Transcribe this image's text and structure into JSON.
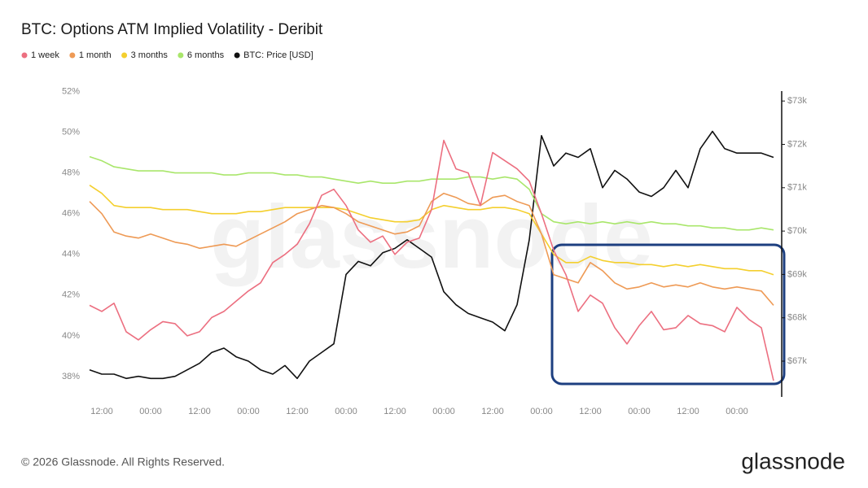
{
  "chart_data": {
    "type": "line",
    "title": "BTC: Options ATM Implied Volatility - Deribit",
    "watermark": "glassnode",
    "categories": [
      null,
      "12:00",
      null,
      null,
      null,
      "00:00",
      null,
      null,
      null,
      "12:00",
      null,
      null,
      null,
      "00:00",
      null,
      null,
      null,
      "12:00",
      null,
      null,
      null,
      "00:00",
      null,
      null,
      null,
      "12:00",
      null,
      null,
      null,
      "00:00",
      null,
      null,
      null,
      "12:00",
      null,
      null,
      null,
      "00:00",
      null,
      null,
      null,
      "12:00",
      null,
      null,
      null,
      "00:00",
      null,
      null,
      null,
      "12:00",
      null,
      null,
      null,
      "00:00",
      null,
      null,
      null
    ],
    "ylim": [
      37,
      52.3
    ],
    "yticks": [
      {
        "value": 38,
        "label": "38%"
      },
      {
        "value": 40,
        "label": "40%"
      },
      {
        "value": 42,
        "label": "42%"
      },
      {
        "value": 44,
        "label": "44%"
      },
      {
        "value": 46,
        "label": "46%"
      },
      {
        "value": 48,
        "label": "48%"
      },
      {
        "value": 50,
        "label": "50%"
      },
      {
        "value": 52,
        "label": "52%"
      }
    ],
    "y2lim": [
      66175,
      73360
    ],
    "y2ticks": [
      {
        "value": 67000,
        "label": "$67k"
      },
      {
        "value": 68000,
        "label": "$68k"
      },
      {
        "value": 69000,
        "label": "$69k"
      },
      {
        "value": 70000,
        "label": "$70k"
      },
      {
        "value": 71000,
        "label": "$71k"
      },
      {
        "value": 72000,
        "label": "$72k"
      },
      {
        "value": 73000,
        "label": "$73k"
      }
    ],
    "grid": false,
    "series": [
      {
        "name": "1 week",
        "color": "#ec6f80",
        "values": [
          41.5,
          41.2,
          41.6,
          40.2,
          39.8,
          40.3,
          40.7,
          40.6,
          40.0,
          40.2,
          40.9,
          41.2,
          41.7,
          42.2,
          42.6,
          43.6,
          44.0,
          44.5,
          45.5,
          46.9,
          47.2,
          46.4,
          45.2,
          44.6,
          44.9,
          44.0,
          44.6,
          44.8,
          46.2,
          49.6,
          48.2,
          48.0,
          46.4,
          49.0,
          48.6,
          48.2,
          47.6,
          46.0,
          44.2,
          43.0,
          41.2,
          42.0,
          41.6,
          40.4,
          39.6,
          40.5,
          41.2,
          40.3,
          40.4,
          41.0,
          40.6,
          40.5,
          40.2,
          41.4,
          40.8,
          40.4,
          37.8
        ]
      },
      {
        "name": "1 month",
        "color": "#ee9a55",
        "values": [
          46.6,
          46.0,
          45.1,
          44.9,
          44.8,
          45.0,
          44.8,
          44.6,
          44.5,
          44.3,
          44.4,
          44.5,
          44.4,
          44.7,
          45.0,
          45.3,
          45.6,
          46.0,
          46.2,
          46.4,
          46.3,
          46.0,
          45.6,
          45.4,
          45.2,
          45.0,
          45.1,
          45.4,
          46.6,
          47.0,
          46.8,
          46.5,
          46.4,
          46.8,
          46.9,
          46.6,
          46.4,
          45.0,
          43.0,
          42.8,
          42.6,
          43.6,
          43.2,
          42.6,
          42.3,
          42.4,
          42.6,
          42.4,
          42.5,
          42.4,
          42.6,
          42.4,
          42.3,
          42.4,
          42.3,
          42.2,
          41.5
        ]
      },
      {
        "name": "3 months",
        "color": "#f4cf2e",
        "values": [
          47.4,
          47.0,
          46.4,
          46.3,
          46.3,
          46.3,
          46.2,
          46.2,
          46.2,
          46.1,
          46.0,
          46.0,
          46.0,
          46.1,
          46.1,
          46.2,
          46.3,
          46.3,
          46.3,
          46.3,
          46.3,
          46.2,
          46.0,
          45.8,
          45.7,
          45.6,
          45.6,
          45.7,
          46.2,
          46.4,
          46.3,
          46.2,
          46.2,
          46.3,
          46.3,
          46.2,
          46.0,
          45.0,
          44.0,
          43.6,
          43.6,
          43.9,
          43.7,
          43.6,
          43.6,
          43.5,
          43.5,
          43.4,
          43.5,
          43.4,
          43.5,
          43.4,
          43.3,
          43.3,
          43.2,
          43.2,
          43.0
        ]
      },
      {
        "name": "6 months",
        "color": "#a9e66b",
        "values": [
          48.8,
          48.6,
          48.3,
          48.2,
          48.1,
          48.1,
          48.1,
          48.0,
          48.0,
          48.0,
          48.0,
          47.9,
          47.9,
          48.0,
          48.0,
          48.0,
          47.9,
          47.9,
          47.8,
          47.8,
          47.7,
          47.6,
          47.5,
          47.6,
          47.5,
          47.5,
          47.6,
          47.6,
          47.7,
          47.7,
          47.7,
          47.8,
          47.8,
          47.7,
          47.8,
          47.7,
          47.2,
          46.0,
          45.6,
          45.5,
          45.6,
          45.5,
          45.6,
          45.5,
          45.6,
          45.5,
          45.6,
          45.5,
          45.5,
          45.4,
          45.4,
          45.3,
          45.3,
          45.2,
          45.2,
          45.3,
          45.2
        ]
      },
      {
        "name": "BTC: Price [USD]",
        "color": "#111111",
        "axis": "y2",
        "values": [
          66800,
          66700,
          66700,
          66600,
          66650,
          66600,
          66600,
          66650,
          66800,
          66950,
          67200,
          67300,
          67100,
          67000,
          66800,
          66700,
          66900,
          66600,
          67000,
          67200,
          67400,
          69000,
          69300,
          69200,
          69500,
          69600,
          69800,
          69600,
          69400,
          68600,
          68300,
          68100,
          68000,
          67900,
          67700,
          68300,
          69800,
          72200,
          71500,
          71800,
          71700,
          71900,
          71000,
          71400,
          71200,
          70900,
          70800,
          71000,
          71400,
          71000,
          71900,
          72300,
          71900,
          71800,
          71800,
          71800,
          71700
        ]
      }
    ]
  },
  "footer": {
    "copyright": "© 2026 Glassnode. All Rights Reserved.",
    "logo": "glassnode"
  }
}
